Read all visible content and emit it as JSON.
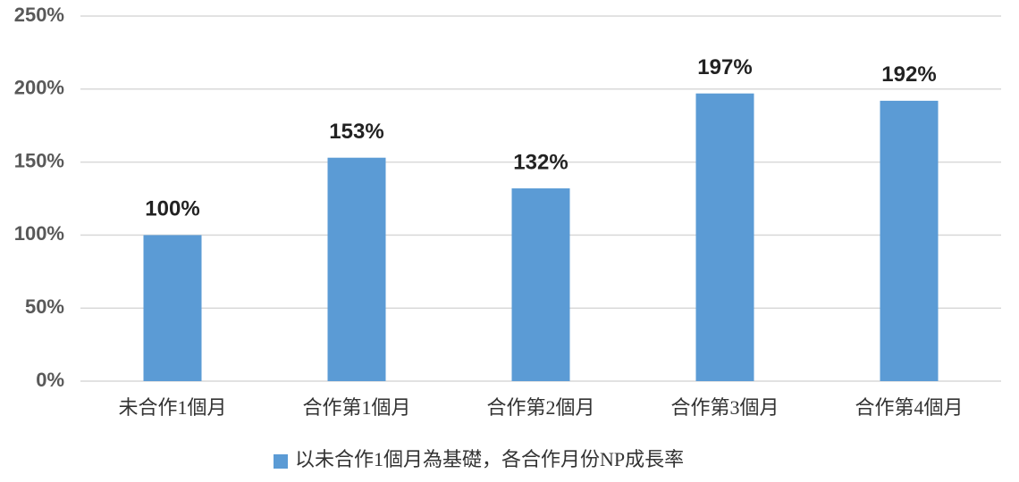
{
  "chart_data": {
    "type": "bar",
    "categories": [
      "未合作1個月",
      "合作第1個月",
      "合作第2個月",
      "合作第3個月",
      "合作第4個月"
    ],
    "series": [
      {
        "name": "以未合作1個月為基礎，各合作月份NP成長率",
        "color": "#5b9bd5",
        "values": [
          100,
          153,
          132,
          197,
          192
        ],
        "value_labels": [
          "100%",
          "153%",
          "132%",
          "197%",
          "192%"
        ]
      }
    ],
    "ylim": [
      0,
      250
    ],
    "yticks": [
      {
        "value": 0,
        "label": "0%"
      },
      {
        "value": 50,
        "label": "50%"
      },
      {
        "value": 100,
        "label": "100%"
      },
      {
        "value": 150,
        "label": "150%"
      },
      {
        "value": 200,
        "label": "200%"
      },
      {
        "value": 250,
        "label": "250%"
      }
    ],
    "grid": true,
    "legend": "bottom"
  }
}
